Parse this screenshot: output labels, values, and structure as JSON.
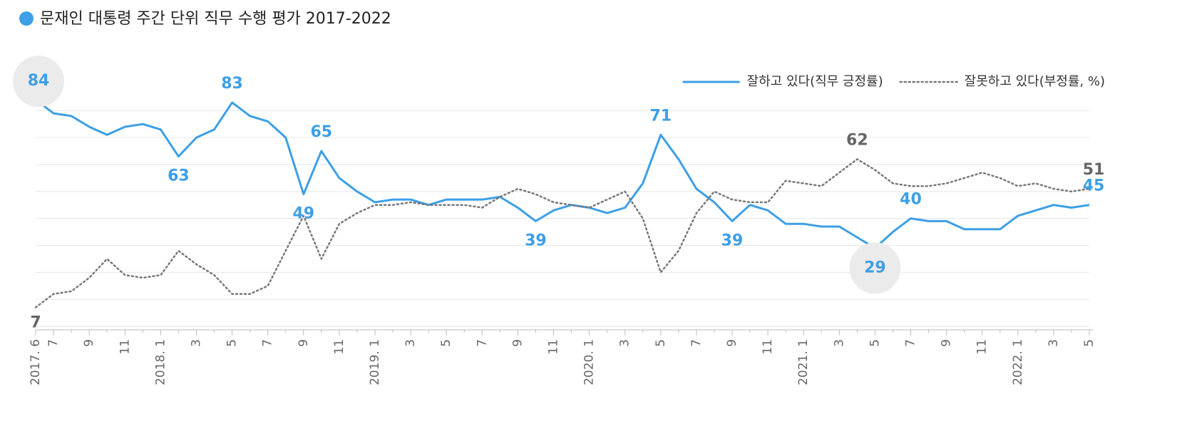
{
  "chart_data": {
    "type": "line",
    "title": "문재인 대통령 주간 단위 직무 수행 평가 2017-2022",
    "categories": [
      "2017. 6",
      "7",
      null,
      "9",
      null,
      "11",
      null,
      "2018. 1",
      null,
      "3",
      null,
      "5",
      null,
      "7",
      null,
      "9",
      null,
      "11",
      null,
      "2019. 1",
      null,
      "3",
      null,
      "5",
      null,
      "7",
      null,
      "9",
      null,
      "11",
      null,
      "2020. 1",
      null,
      "3",
      null,
      "5",
      null,
      "7",
      null,
      "9",
      null,
      "11",
      null,
      "2021. 1",
      null,
      "3",
      null,
      "5",
      null,
      "7",
      null,
      "9",
      null,
      "11",
      null,
      "2022. 1",
      null,
      "3",
      null,
      "5"
    ],
    "series": [
      {
        "name": "잘하고 있다(직무 긍정률)",
        "color": "#3d9fe6",
        "style": "solid",
        "values": [
          84,
          79,
          78,
          74,
          71,
          74,
          75,
          73,
          63,
          70,
          73,
          83,
          78,
          76,
          70,
          49,
          65,
          55,
          50,
          46,
          47,
          47,
          45,
          47,
          47,
          47,
          48,
          44,
          39,
          43,
          45,
          44,
          42,
          44,
          53,
          71,
          62,
          51,
          46,
          39,
          45,
          43,
          38,
          38,
          37,
          37,
          33,
          29,
          35,
          40,
          39,
          39,
          36,
          36,
          36,
          41,
          43,
          45,
          44,
          45
        ],
        "value_labels": [
          "84",
          null,
          null,
          null,
          null,
          null,
          null,
          null,
          "63",
          null,
          null,
          "83",
          null,
          null,
          null,
          "49",
          "65",
          null,
          null,
          null,
          null,
          null,
          null,
          null,
          null,
          null,
          null,
          null,
          "39",
          null,
          null,
          null,
          null,
          null,
          null,
          "71",
          null,
          null,
          null,
          "39",
          null,
          null,
          null,
          null,
          null,
          null,
          null,
          "29",
          null,
          "40",
          null,
          null,
          null,
          null,
          null,
          null,
          null,
          null,
          null,
          "45"
        ]
      },
      {
        "name": "잘못하고 있다(부정률, %)",
        "color": "#777777",
        "style": "dotted",
        "values": [
          7,
          12,
          13,
          18,
          25,
          19,
          18,
          19,
          28,
          23,
          19,
          12,
          12,
          15,
          28,
          41,
          25,
          38,
          42,
          45,
          45,
          46,
          45,
          45,
          45,
          44,
          48,
          51,
          49,
          46,
          45,
          44,
          47,
          50,
          40,
          20,
          28,
          42,
          50,
          47,
          46,
          46,
          54,
          53,
          52,
          57,
          62,
          58,
          53,
          52,
          52,
          53,
          55,
          57,
          55,
          52,
          53,
          51,
          50,
          51
        ],
        "value_labels": [
          "7",
          null,
          null,
          null,
          null,
          null,
          null,
          null,
          null,
          null,
          null,
          null,
          null,
          null,
          null,
          null,
          null,
          null,
          null,
          null,
          null,
          null,
          null,
          null,
          null,
          null,
          null,
          null,
          null,
          null,
          null,
          null,
          null,
          null,
          null,
          null,
          null,
          null,
          null,
          null,
          null,
          null,
          null,
          null,
          null,
          null,
          "62",
          null,
          null,
          null,
          null,
          null,
          null,
          null,
          null,
          null,
          null,
          null,
          null,
          "51"
        ]
      }
    ],
    "ylim": [
      0,
      88
    ],
    "yticks": [
      0,
      10,
      20,
      30,
      40,
      50,
      60,
      70,
      80
    ],
    "grid": true,
    "legend": "top-right"
  }
}
